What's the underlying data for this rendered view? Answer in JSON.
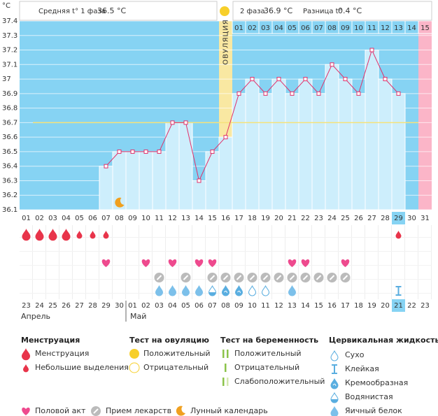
{
  "header": {
    "phase1_label": "Средняя t° 1 фаза",
    "phase1_value": "36.5 °C",
    "phase2_label": "2 фаза",
    "phase2_value": "36.9 °C",
    "diff_label": "Разница t°",
    "diff_value": "0.4 °C"
  },
  "chart_data": {
    "type": "line",
    "y_label": "°C",
    "categories": [
      "01",
      "02",
      "03",
      "04",
      "05",
      "06",
      "07",
      "08",
      "09",
      "10",
      "11",
      "12",
      "13",
      "14",
      "15",
      "16",
      "17",
      "18",
      "19",
      "20",
      "21",
      "22",
      "23",
      "24",
      "25",
      "26",
      "27",
      "28",
      "29",
      "30",
      "31"
    ],
    "values": [
      null,
      null,
      null,
      null,
      null,
      null,
      36.4,
      36.5,
      36.5,
      36.5,
      36.5,
      36.7,
      36.7,
      36.3,
      36.5,
      36.6,
      36.9,
      37.0,
      36.9,
      37.0,
      36.9,
      37.0,
      36.9,
      37.1,
      37.0,
      36.9,
      37.2,
      37.0,
      36.9,
      null,
      null
    ],
    "color": "#e0306a",
    "ylim": [
      36.1,
      37.4
    ],
    "yticks": [
      36.1,
      36.2,
      36.3,
      36.4,
      36.5,
      36.6,
      36.7,
      36.8,
      36.9,
      37,
      37.1,
      37.2,
      37.3,
      37.4
    ],
    "grid": true,
    "coverline": 36.7,
    "ovulation_label": "ОВУЛЯЦИЯ",
    "ovulation_day": 16,
    "next_period_day": 31,
    "today": 29,
    "phase2_days": [
      "01",
      "02",
      "03",
      "04",
      "05",
      "06",
      "07",
      "08",
      "09",
      "10",
      "11",
      "12",
      "13",
      "14",
      "15"
    ]
  },
  "events": {
    "menstruation": [
      1,
      2,
      3,
      4
    ],
    "spotting": [
      5,
      6,
      7,
      29
    ],
    "intercourse": [
      7,
      10,
      12,
      14,
      15,
      21,
      22,
      25
    ],
    "medication": [
      11,
      13,
      15,
      16,
      17,
      18,
      19,
      20,
      21,
      22,
      23,
      24,
      25
    ],
    "moon": [
      8
    ],
    "cervical": {
      "dry": [
        18,
        19
      ],
      "sticky": [
        29
      ],
      "creamy": [
        16,
        17
      ],
      "watery": [
        15
      ],
      "egg_white": [
        11,
        12,
        13,
        14,
        21
      ]
    }
  },
  "calendar": {
    "dates": [
      "23",
      "24",
      "25",
      "26",
      "27",
      "28",
      "29",
      "30",
      "01",
      "02",
      "03",
      "04",
      "05",
      "06",
      "07",
      "08",
      "09",
      "10",
      "11",
      "12",
      "13",
      "14",
      "15",
      "16",
      "17",
      "18",
      "19",
      "20",
      "21",
      "22",
      "23"
    ],
    "weekend_days": [
      5,
      6,
      12,
      13,
      19,
      20,
      26,
      27
    ],
    "months": [
      "Апрель",
      "Май"
    ],
    "month_start_days": [
      1,
      9
    ]
  },
  "legend": {
    "menstruation": {
      "title": "Менструация",
      "items": [
        "Менструация",
        "Небольшие выделения"
      ]
    },
    "ovulation_test": {
      "title": "Тест на овуляцию",
      "items": [
        "Положительный",
        "Отрицательный"
      ]
    },
    "pregnancy_test": {
      "title": "Тест на беременность",
      "items": [
        "Положительный",
        "Отрицательный",
        "Слабоположительный"
      ]
    },
    "cervical": {
      "title": "Цервикальная жидкость",
      "items": [
        "Сухо",
        "Клейкая",
        "Кремообразная",
        "Водянистая",
        "Яичный белок"
      ]
    },
    "other": [
      "Половой акт",
      "Прием лекарств",
      "Лунный календарь"
    ]
  }
}
